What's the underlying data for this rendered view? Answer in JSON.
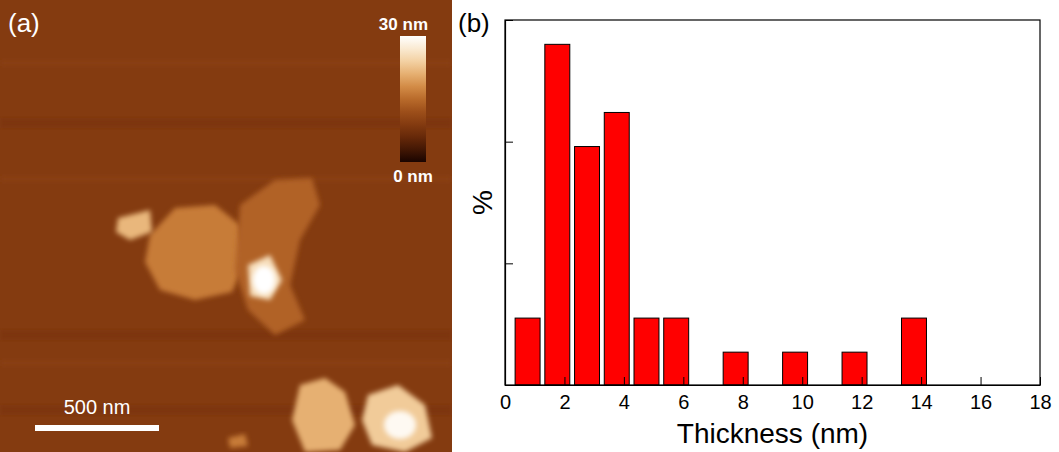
{
  "chart_data": {
    "type": "histogram",
    "panel_label": "(b)",
    "x_label": "Thickness (nm)",
    "y_label": "%",
    "bins": [
      0.3,
      1.3,
      2.3,
      3.3,
      4.3,
      5.3,
      6.3,
      7.3,
      8.3,
      9.3,
      10.3,
      11.3,
      12.3,
      13.3,
      14.3
    ],
    "values": [
      5.5,
      28.0,
      19.6,
      22.4,
      5.5,
      5.5,
      0,
      2.7,
      0,
      2.7,
      0,
      2.7,
      0,
      5.5
    ],
    "color": "#ff0000",
    "xlim": [
      0,
      18
    ],
    "xticks": [
      0,
      2,
      4,
      6,
      8,
      10,
      12,
      14,
      16,
      18
    ],
    "ylim": [
      0,
      30
    ],
    "yticks": [
      0,
      10,
      20,
      30
    ],
    "tick_labels": "x"
  },
  "image_panel": {
    "panel_label": "(a)",
    "scale_bar": "500 nm",
    "colorbar": {
      "range": [
        0,
        30
      ],
      "ticks": [
        {
          "value": 30,
          "label": "30 nm"
        },
        {
          "value": 0,
          "label": "0 nm"
        }
      ]
    }
  }
}
